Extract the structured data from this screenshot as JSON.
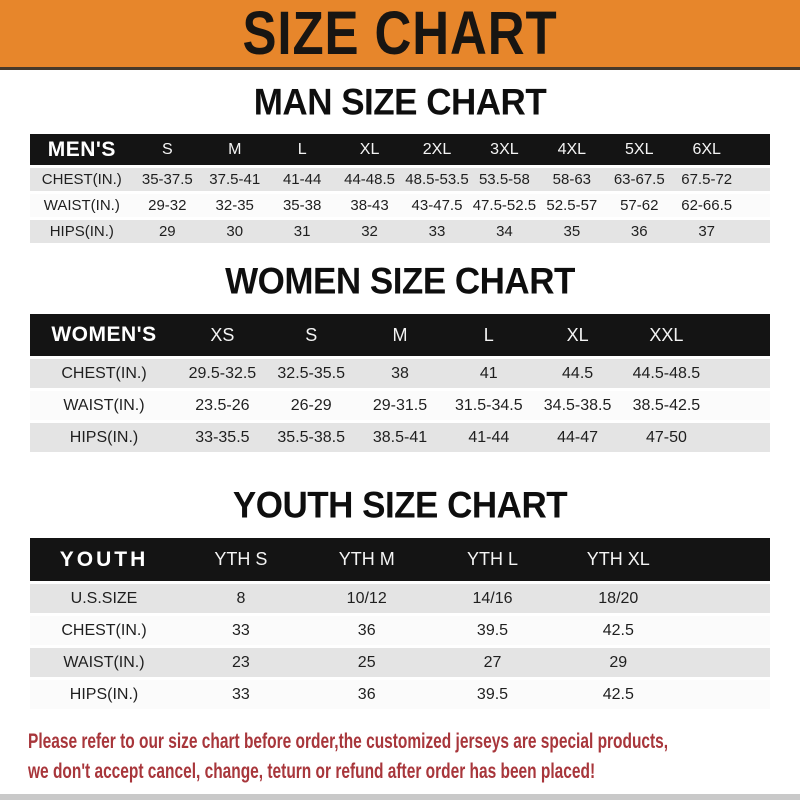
{
  "banner": {
    "title": "SIZE CHART",
    "background": "#E7862B",
    "text_color": "#181512"
  },
  "sections": [
    {
      "id": "men",
      "heading": "MAN SIZE CHART",
      "table": {
        "header": [
          "MEN'S",
          "S",
          "M",
          "L",
          "XL",
          "2XL",
          "3XL",
          "4XL",
          "5XL",
          "6XL"
        ],
        "rows": [
          [
            "CHEST(IN.)",
            "35-37.5",
            "37.5-41",
            "41-44",
            "44-48.5",
            "48.5-53.5",
            "53.5-58",
            "58-63",
            "63-67.5",
            "67.5-72"
          ],
          [
            "WAIST(IN.)",
            "29-32",
            "32-35",
            "35-38",
            "38-43",
            "43-47.5",
            "47.5-52.5",
            "52.5-57",
            "57-62",
            "62-66.5"
          ],
          [
            "HIPS(IN.)",
            "29",
            "30",
            "31",
            "32",
            "33",
            "34",
            "35",
            "36",
            "37"
          ]
        ]
      }
    },
    {
      "id": "women",
      "heading": "WOMEN SIZE CHART",
      "table": {
        "header": [
          "WOMEN'S",
          "XS",
          "S",
          "M",
          "L",
          "XL",
          "XXL"
        ],
        "rows": [
          [
            "CHEST(IN.)",
            "29.5-32.5",
            "32.5-35.5",
            "38",
            "41",
            "44.5",
            "44.5-48.5"
          ],
          [
            "WAIST(IN.)",
            "23.5-26",
            "26-29",
            "29-31.5",
            "31.5-34.5",
            "34.5-38.5",
            "38.5-42.5"
          ],
          [
            "HIPS(IN.)",
            "33-35.5",
            "35.5-38.5",
            "38.5-41",
            "41-44",
            "44-47",
            "47-50"
          ]
        ]
      }
    },
    {
      "id": "youth",
      "heading": "YOUTH SIZE CHART",
      "table": {
        "header": [
          "YOUTH",
          "YTH S",
          "YTH M",
          "YTH L",
          "YTH XL"
        ],
        "rows": [
          [
            "U.S.SIZE",
            "8",
            "10/12",
            "14/16",
            "18/20"
          ],
          [
            "CHEST(IN.)",
            "33",
            "36",
            "39.5",
            "42.5"
          ],
          [
            "WAIST(IN.)",
            "23",
            "25",
            "27",
            "29"
          ],
          [
            "HIPS(IN.)",
            "33",
            "36",
            "39.5",
            "42.5"
          ]
        ]
      }
    }
  ],
  "footer": {
    "lines": [
      "Please refer to our size chart before order,the customized jerseys are special products,",
      "we don't accept cancel, change, teturn or refund after order has been placed!"
    ],
    "text_color": "#A8363B"
  },
  "colors": {
    "header_bar": "#141414",
    "row_gray": "#E4E4E4",
    "row_white": "#FBFBFB",
    "bottom_bar": "#C9C9C9"
  }
}
